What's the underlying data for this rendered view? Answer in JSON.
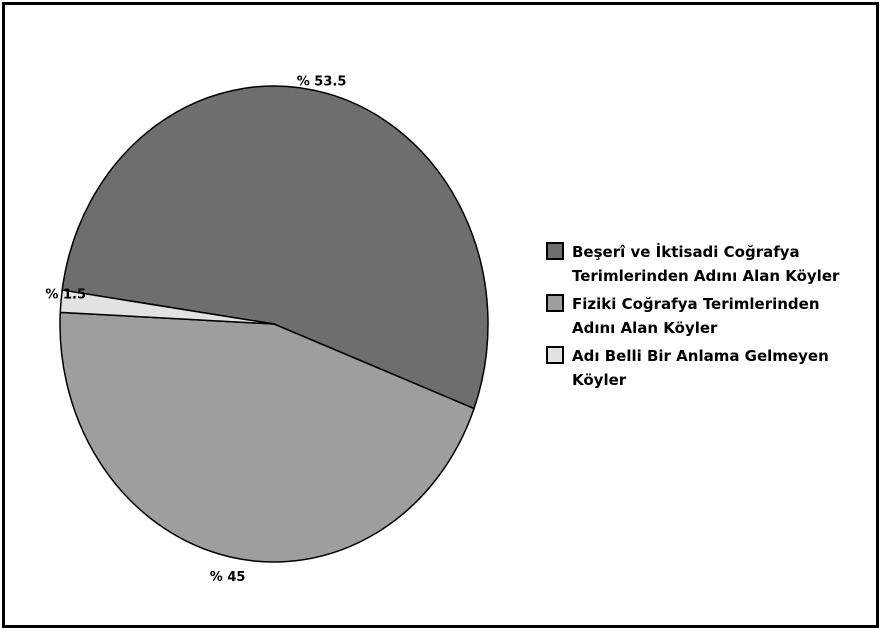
{
  "chart_data": {
    "type": "pie",
    "slices": [
      {
        "label": "Beşerî ve İktisadi Coğrafya Terimlerinden Adını Alan Köyler",
        "value": 53.5,
        "value_label": "% 53.5",
        "color": "#6e6e6e"
      },
      {
        "label": "Fiziki Coğrafya Terimlerinden Adını Alan Köyler",
        "value": 45,
        "value_label": "% 45",
        "color": "#9e9e9e"
      },
      {
        "label": "Adı Belli Bir Anlama Gelmeyen Köyler",
        "value": 1.5,
        "value_label": "% 1.5",
        "color": "#e2e2e2"
      }
    ],
    "legend_position": "right"
  },
  "legend": {
    "items": [
      {
        "line1": "Beşerî ve İktisadi Coğrafya",
        "line2": "Terimlerinden Adını Alan Köyler",
        "color": "#6e6e6e"
      },
      {
        "line1": "Fiziki Coğrafya Terimlerinden",
        "line2": "Adını Alan Köyler",
        "color": "#9e9e9e"
      },
      {
        "line1": "Adı Belli Bir Anlama Gelmeyen",
        "line2": "Köyler",
        "color": "#e2e2e2"
      }
    ]
  }
}
